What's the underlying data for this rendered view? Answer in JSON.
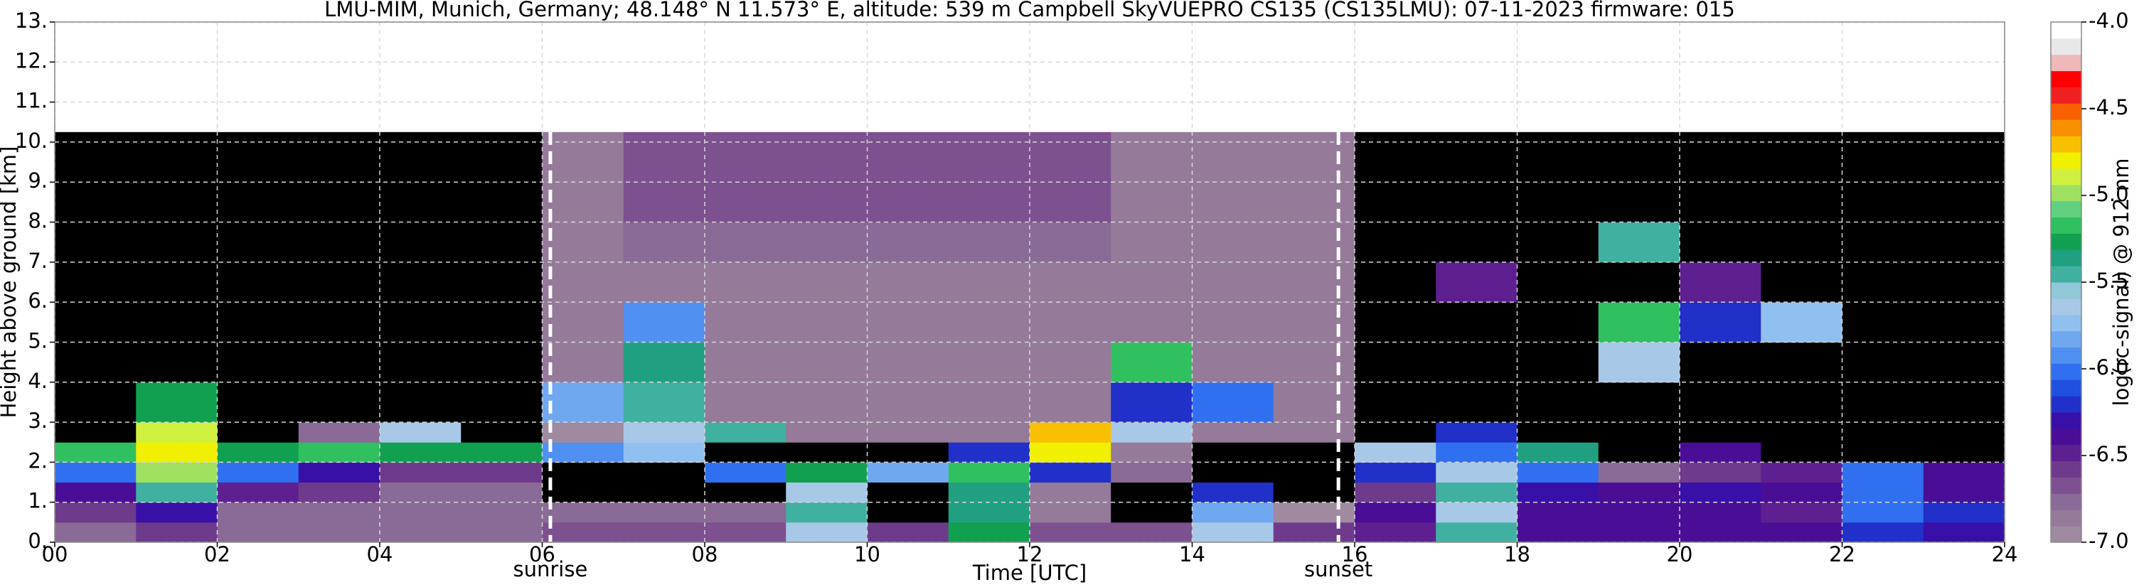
{
  "chart_data": {
    "type": "heatmap",
    "title": "LMU-MIM, Munich, Germany; 48.148° N 11.573° E, altitude: 539 m    Campbell SkyVUEPRO CS135 (CS135LMU): 07-11-2023    firmware: 015",
    "x_label": "Time [UTC]",
    "y_label": "Height above ground [km]",
    "colorbar_label": "log(rc-signal) @ 912 nm",
    "x": [
      0,
      1,
      2,
      3,
      4,
      5,
      6,
      7,
      8,
      9,
      10,
      11,
      12,
      13,
      14,
      15,
      16,
      17,
      18,
      19,
      20,
      21,
      22,
      23
    ],
    "y_bins": [
      0,
      0.5,
      1,
      1.5,
      2,
      2.5,
      3,
      4,
      5,
      6,
      7,
      8,
      9,
      10.25
    ],
    "values": [
      [
        -6.8,
        -6.6,
        -6.8,
        -6.8,
        -6.8,
        -6.8,
        -6.7,
        -6.7,
        -6.7,
        -5.6,
        -6.6,
        -5.3,
        -6.7,
        -6.7,
        -5.6,
        -6.6,
        -6.5,
        -5.5,
        -6.4,
        -6.4,
        -6.4,
        -6.4,
        -6.2,
        -6.3
      ],
      [
        -6.6,
        -6.3,
        -6.8,
        -6.8,
        -6.8,
        -6.8,
        -6.8,
        -6.8,
        -6.8,
        -5.5,
        -7.2,
        -5.4,
        -6.9,
        -7.2,
        -5.8,
        -7.0,
        -6.4,
        -5.6,
        -6.4,
        -6.4,
        -6.4,
        -6.5,
        -6.0,
        -6.2
      ],
      [
        -6.4,
        -5.5,
        -6.5,
        -6.6,
        -6.8,
        -6.8,
        -7.2,
        -7.2,
        -7.2,
        -5.6,
        -7.2,
        -5.4,
        -6.9,
        -7.2,
        -6.2,
        -7.2,
        -6.6,
        -5.5,
        -6.3,
        -6.4,
        -6.3,
        -6.4,
        -6.0,
        -6.4
      ],
      [
        -6.0,
        -5.0,
        -6.0,
        -6.3,
        -6.6,
        -6.6,
        -7.2,
        -7.2,
        -6.0,
        -5.3,
        -5.8,
        -5.2,
        -6.2,
        -6.8,
        -7.2,
        -7.2,
        -6.2,
        -5.6,
        -6.0,
        -6.8,
        -6.6,
        -6.5,
        -6.0,
        -6.4
      ],
      [
        -5.2,
        -4.8,
        -5.3,
        -5.2,
        -5.3,
        -5.3,
        -5.9,
        -5.7,
        -7.2,
        -7.2,
        -7.2,
        -6.2,
        -4.8,
        -6.9,
        -7.2,
        -7.5,
        -5.6,
        -6.0,
        -5.4,
        -7.5,
        -6.4,
        -7.5,
        -7.5,
        -7.5
      ],
      [
        -7.5,
        -4.9,
        -7.5,
        -6.8,
        -5.6,
        -7.5,
        -7.0,
        -5.6,
        -5.5,
        -6.9,
        -6.9,
        -6.9,
        -4.7,
        -5.6,
        -6.9,
        -6.9,
        -7.5,
        -6.2,
        -7.5,
        -7.5,
        -7.5,
        -7.5,
        -7.5,
        -7.5
      ],
      [
        -7.5,
        -5.3,
        -7.5,
        -7.5,
        -7.5,
        -7.5,
        -5.8,
        -5.5,
        -6.9,
        -6.9,
        -6.9,
        -6.9,
        -6.9,
        -6.2,
        -6.0,
        -6.9,
        -7.5,
        -7.5,
        -7.5,
        -7.5,
        -7.5,
        -7.5,
        -7.5,
        -7.5
      ],
      [
        -7.2,
        -7.2,
        -7.2,
        -7.2,
        -7.2,
        -7.2,
        -6.9,
        -5.4,
        -6.9,
        -6.9,
        -6.9,
        -6.9,
        -6.9,
        -5.2,
        -6.9,
        -6.9,
        -7.5,
        -7.5,
        -7.5,
        -5.6,
        -7.5,
        -7.5,
        -7.5,
        -7.5
      ],
      [
        -7.2,
        -7.2,
        -7.2,
        -7.2,
        -7.2,
        -7.2,
        -6.9,
        -5.9,
        -6.9,
        -6.9,
        -6.9,
        -6.9,
        -6.9,
        -6.9,
        -6.9,
        -6.9,
        -7.5,
        -7.5,
        -7.5,
        -5.2,
        -6.2,
        -5.7,
        -7.5,
        -7.5
      ],
      [
        -7.2,
        -7.2,
        -7.2,
        -7.2,
        -7.2,
        -7.2,
        -6.9,
        -6.9,
        -6.9,
        -6.9,
        -6.9,
        -6.9,
        -6.9,
        -6.9,
        -6.9,
        -6.9,
        -7.5,
        -6.5,
        -7.5,
        -7.5,
        -6.5,
        -7.5,
        -7.5,
        -7.5
      ],
      [
        -7.2,
        -7.2,
        -7.2,
        -7.2,
        -7.2,
        -7.2,
        -6.9,
        -6.8,
        -6.8,
        -6.8,
        -6.8,
        -6.8,
        -6.8,
        -6.9,
        -6.9,
        -6.9,
        -7.3,
        -7.3,
        -7.3,
        -5.5,
        -7.3,
        -7.3,
        -7.3,
        -7.3
      ],
      [
        -7.2,
        -7.2,
        -7.2,
        -7.2,
        -7.2,
        -7.2,
        -6.9,
        -6.7,
        -6.7,
        -6.7,
        -6.7,
        -6.7,
        -6.7,
        -6.9,
        -6.9,
        -6.9,
        -7.2,
        -7.2,
        -7.2,
        -7.2,
        -7.2,
        -7.2,
        -7.2,
        -7.2
      ],
      [
        -7.2,
        -7.2,
        -7.2,
        -7.2,
        -7.2,
        -7.2,
        -6.9,
        -6.7,
        -6.7,
        -6.7,
        -6.7,
        -6.7,
        -6.7,
        -6.9,
        -6.9,
        -6.9,
        -7.2,
        -7.2,
        -7.2,
        -7.2,
        -7.2,
        -7.2,
        -7.2,
        -7.2
      ]
    ],
    "xlim": [
      0,
      24
    ],
    "ylim": [
      0,
      13
    ],
    "xticks": [
      {
        "value": 0,
        "label": "00"
      },
      {
        "value": 2,
        "label": "02"
      },
      {
        "value": 4,
        "label": "04"
      },
      {
        "value": 6,
        "label": "06"
      },
      {
        "value": 8,
        "label": "08"
      },
      {
        "value": 10,
        "label": "10"
      },
      {
        "value": 12,
        "label": "12"
      },
      {
        "value": 14,
        "label": "14"
      },
      {
        "value": 16,
        "label": "16"
      },
      {
        "value": 18,
        "label": "18"
      },
      {
        "value": 20,
        "label": "20"
      },
      {
        "value": 22,
        "label": "22"
      },
      {
        "value": 24,
        "label": "24"
      }
    ],
    "yticks": [
      {
        "value": 0,
        "label": "0."
      },
      {
        "value": 1,
        "label": "1."
      },
      {
        "value": 2,
        "label": "2."
      },
      {
        "value": 3,
        "label": "3."
      },
      {
        "value": 4,
        "label": "4."
      },
      {
        "value": 5,
        "label": "5."
      },
      {
        "value": 6,
        "label": "6."
      },
      {
        "value": 7,
        "label": "7."
      },
      {
        "value": 8,
        "label": "8."
      },
      {
        "value": 9,
        "label": "9."
      },
      {
        "value": 10,
        "label": "10."
      },
      {
        "value": 11,
        "label": "11."
      },
      {
        "value": 12,
        "label": "12."
      },
      {
        "value": 13,
        "label": "13."
      }
    ],
    "zlim": [
      -7,
      -4
    ],
    "zticks": [
      {
        "value": -7,
        "label": "-7.0"
      },
      -6.5,
      {
        "value": -6,
        "label": "-6.0"
      },
      -5.5,
      {
        "value": -5,
        "label": "-5.0"
      },
      -4.5,
      {
        "value": -4,
        "label": "-4.0"
      }
    ],
    "colorscale": [
      "#a08aa0",
      "#957a9a",
      "#8a6a96",
      "#7d5090",
      "#6e3a8c",
      "#5e2090",
      "#4a0e96",
      "#3810a8",
      "#2030c8",
      "#2050e0",
      "#3070f0",
      "#5090f0",
      "#70a8f0",
      "#90c0f0",
      "#a8c8e8",
      "#90c8d8",
      "#40b0a0",
      "#20a080",
      "#10a050",
      "#30c060",
      "#60d080",
      "#a0e060",
      "#d0f040",
      "#f0f000",
      "#f8c000",
      "#f89000",
      "#f86000",
      "#f02020",
      "#ff0000",
      "#f0b8b8",
      "#e8e8e8",
      "#ffffff"
    ],
    "under_color": "#000000",
    "grid": true,
    "annotations": [
      {
        "label": "sunrise",
        "x": 6.1
      },
      {
        "label": "sunset",
        "x": 15.8
      }
    ]
  }
}
